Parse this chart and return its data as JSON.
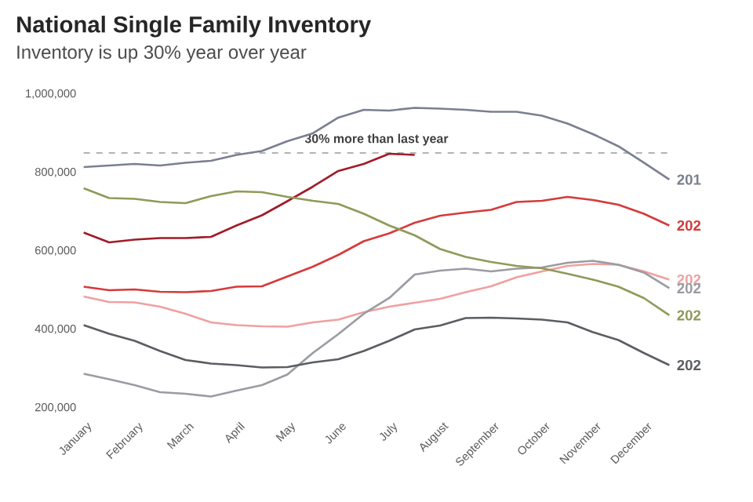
{
  "chart_data": {
    "type": "line",
    "title": "National Single Family Inventory",
    "subtitle": "Inventory is up 30% year over year",
    "categories": [
      "January",
      null,
      "February",
      null,
      "March",
      null,
      "April",
      null,
      "May",
      null,
      "June",
      null,
      "July",
      null,
      "August",
      null,
      "September",
      null,
      "October",
      null,
      "November",
      null,
      "December",
      null
    ],
    "ylim": [
      200000,
      1000000
    ],
    "yticks": [
      {
        "value": 200000,
        "label": "200,000"
      },
      {
        "value": 400000,
        "label": "400,000"
      },
      {
        "value": 600000,
        "label": "600,000"
      },
      {
        "value": 800000,
        "label": "800,000"
      },
      {
        "value": 1000000,
        "label": "1,000,000"
      }
    ],
    "series": [
      {
        "name": "201",
        "color": "#7a8090",
        "values": [
          814000,
          818000,
          822000,
          818000,
          825000,
          830000,
          845000,
          855000,
          880000,
          900000,
          940000,
          960000,
          958000,
          965000,
          963000,
          960000,
          955000,
          955000,
          945000,
          925000,
          898000,
          867000,
          825000,
          782000
        ]
      },
      {
        "color": "#a01c28",
        "values": [
          647000,
          622000,
          629000,
          633000,
          633000,
          636000,
          665000,
          691000,
          727000,
          764000,
          804000,
          822000,
          848000,
          845000,
          null,
          null,
          null,
          null,
          null,
          null,
          null,
          null,
          null,
          null
        ]
      },
      {
        "name": "202",
        "color": "#d63a3a",
        "values": [
          509000,
          500000,
          502000,
          496000,
          495000,
          498000,
          509000,
          510000,
          535000,
          560000,
          590000,
          625000,
          645000,
          672000,
          690000,
          698000,
          705000,
          725000,
          728000,
          738000,
          730000,
          718000,
          695000,
          665000
        ]
      },
      {
        "name": "202",
        "color": "#f0a0a0",
        "values": [
          484000,
          470000,
          469000,
          458000,
          440000,
          418000,
          411000,
          408000,
          407000,
          418000,
          425000,
          444000,
          458000,
          468000,
          478000,
          495000,
          510000,
          533000,
          548000,
          562000,
          567000,
          565000,
          548000,
          527000
        ]
      },
      {
        "name": "202",
        "color": "#9a9ca2",
        "values": [
          287000,
          273000,
          258000,
          240000,
          236000,
          229000,
          244000,
          258000,
          285000,
          340000,
          388000,
          440000,
          480000,
          540000,
          550000,
          555000,
          548000,
          555000,
          558000,
          570000,
          575000,
          565000,
          545000,
          505000
        ]
      },
      {
        "name": "202",
        "color": "#8f9a5a",
        "values": [
          760000,
          735000,
          733000,
          725000,
          722000,
          740000,
          752000,
          750000,
          738000,
          728000,
          720000,
          695000,
          665000,
          640000,
          605000,
          585000,
          572000,
          562000,
          556000,
          542000,
          527000,
          509000,
          480000,
          436000
        ]
      },
      {
        "name": "202",
        "color": "#5a5e62",
        "values": [
          411000,
          389000,
          371000,
          345000,
          322000,
          313000,
          309000,
          303000,
          304000,
          316000,
          324000,
          345000,
          371000,
          400000,
          410000,
          429000,
          430000,
          428000,
          425000,
          418000,
          393000,
          373000,
          340000,
          309000
        ]
      }
    ],
    "ref_lines": [
      {
        "axis": "y",
        "value": 850000,
        "label": "30% more than last year",
        "color": "#9a9a9a",
        "line_style": "dashed"
      }
    ],
    "marker": "none"
  }
}
